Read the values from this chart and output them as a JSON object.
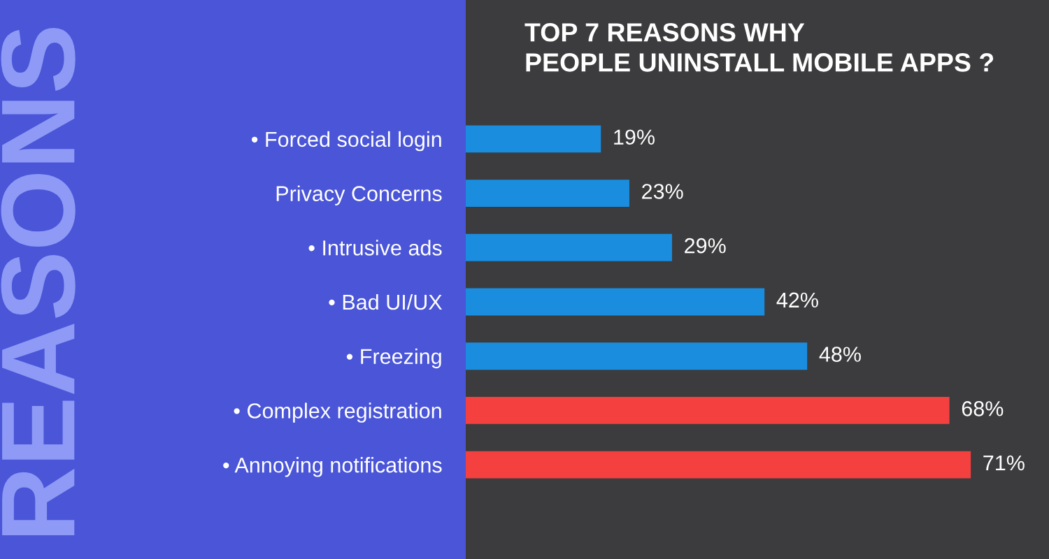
{
  "chart_data": {
    "type": "bar",
    "orientation": "horizontal",
    "title": "TOP 7 REASONS WHY\nPEOPLE UNINSTALL MOBILE APPS ?",
    "categories": [
      "• Forced social login",
      "Privacy Concerns",
      "• Intrusive ads",
      "• Bad UI/UX",
      "• Freezing",
      "• Complex registration",
      "• Annoying notifications"
    ],
    "values": [
      19,
      23,
      29,
      42,
      48,
      68,
      71
    ],
    "colors": [
      "#1a8ddf",
      "#1a8ddf",
      "#1a8ddf",
      "#1a8ddf",
      "#1a8ddf",
      "#f54040",
      "#f54040"
    ],
    "value_labels": [
      "19%",
      "23%",
      "29%",
      "42%",
      "48%",
      "68%",
      "71%"
    ],
    "xlim": [
      0,
      82
    ],
    "grid": false,
    "legend": false,
    "annotations": [
      "REASONS"
    ]
  }
}
